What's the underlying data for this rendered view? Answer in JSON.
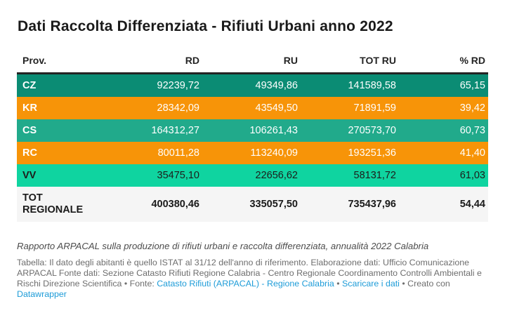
{
  "chart_data": {
    "type": "table",
    "title": "Dati Raccolta Differenziata - Rifiuti Urbani anno 2022",
    "columns": [
      "Prov.",
      "RD",
      "RU",
      "TOT RU",
      "% RD"
    ],
    "rows": [
      {
        "prov": "CZ",
        "rd": "92239,72",
        "ru": "49349,86",
        "tot_ru": "141589,58",
        "pct_rd": "65,15",
        "bg": "#0b8c74",
        "fg": "#ffffff"
      },
      {
        "prov": "KR",
        "rd": "28342,09",
        "ru": "43549,50",
        "tot_ru": "71891,59",
        "pct_rd": "39,42",
        "bg": "#f79408",
        "fg": "#ffffff"
      },
      {
        "prov": "CS",
        "rd": "164312,27",
        "ru": "106261,43",
        "tot_ru": "270573,70",
        "pct_rd": "60,73",
        "bg": "#21aa8b",
        "fg": "#ffffff"
      },
      {
        "prov": "RC",
        "rd": "80011,28",
        "ru": "113240,09",
        "tot_ru": "193251,36",
        "pct_rd": "41,40",
        "bg": "#f79408",
        "fg": "#ffffff"
      },
      {
        "prov": "VV",
        "rd": "35475,10",
        "ru": "22656,62",
        "tot_ru": "58131,72",
        "pct_rd": "61,03",
        "bg": "#0fd4a0",
        "fg": "#1d1d1b"
      },
      {
        "prov": "TOT REGIONALE",
        "rd": "400380,46",
        "ru": "335057,50",
        "tot_ru": "735437,96",
        "pct_rd": "54,44",
        "bg": "#f5f5f5",
        "fg": "#1a1a1a"
      }
    ],
    "layout_hints": {
      "grid": "off",
      "header_rule_color": "#242424",
      "numeric_alignment": "right"
    }
  },
  "colors": {
    "row_dark_teal": "#0b8c74",
    "row_orange": "#f79408",
    "row_medium_teal": "#21aa8b",
    "row_mint": "#0fd4a0",
    "row_total_gray": "#f5f5f5",
    "link_blue": "#1e9cd8",
    "header_rule": "#242424"
  },
  "footer": {
    "source_line": "Rapporto ARPACAL sulla produzione di rifiuti urbani e raccolta differenziata, annualità 2022 Calabria",
    "segments": [
      {
        "text": "Tabella: Il dato degli abitanti è quello ISTAT al 31/12 dell'anno di riferimento. Elaborazione dati: Ufficio Comunicazione ARPACAL Fonte dati: Sezione Catasto Rifiuti Regione Calabria - Centro Regionale Coordinamento Controlli Ambientali e Rischi Direzione Scientifica ",
        "link": false
      },
      {
        "text": " • Fonte: ",
        "link": false
      },
      {
        "text": "Catasto Rifiuti (ARPACAL) - Regione Calabria",
        "link": true
      },
      {
        "text": " • ",
        "link": false
      },
      {
        "text": "Scaricare i dati",
        "link": true
      },
      {
        "text": " • Creato con ",
        "link": false
      },
      {
        "text": "Datawrapper",
        "link": true
      }
    ]
  }
}
